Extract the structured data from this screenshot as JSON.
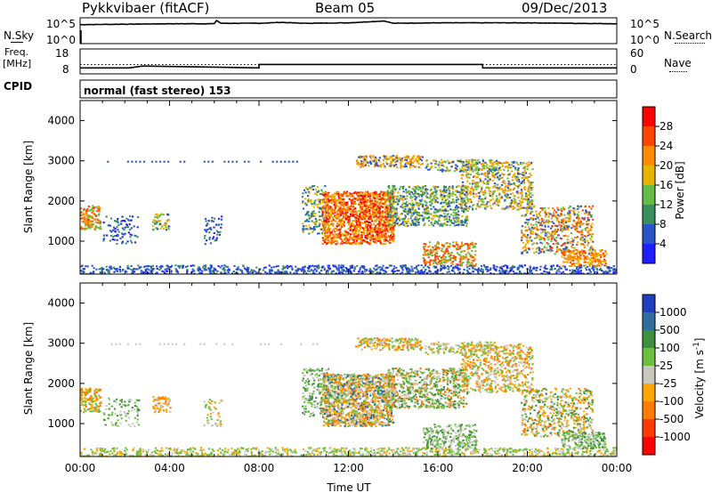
{
  "header": {
    "station": "Pykkvibaer (fitACF)",
    "beam": "Beam 05",
    "date": "09/Dec/2013"
  },
  "strip_nsky": {
    "left_label": "N.Sky",
    "left_ticks": [
      "10^5",
      "10^0"
    ],
    "right_label": "N.Search",
    "right_ticks": [
      "10^5",
      "10^0"
    ]
  },
  "strip_freq": {
    "left_label_1": "Freq.",
    "left_label_2": "[MHz]",
    "left_ticks": [
      "18",
      "8"
    ],
    "right_label": "Nave",
    "right_ticks": [
      "60",
      "0"
    ],
    "cpid_label": "CPID",
    "cpid_text": "normal (fast stereo) 153"
  },
  "colors": {
    "power_scale": [
      "#1e1eff",
      "#2a55c8",
      "#3a8f5a",
      "#66bb44",
      "#e8b400",
      "#ff8c00",
      "#ff4400",
      "#ff0000"
    ],
    "velocity_scale": [
      "#1f3fbf",
      "#2e6e9e",
      "#3e8f3e",
      "#6fbf3f",
      "#c8c8c0",
      "#ffa500",
      "#ff7a00",
      "#ff3a00",
      "#ff0000"
    ]
  },
  "chart_data": [
    {
      "type": "line",
      "name": "N.Sky / N.Search",
      "x": [
        0,
        2,
        4,
        6,
        6.1,
        6.3,
        8,
        9,
        10,
        12,
        13.6,
        14,
        16,
        18,
        20,
        22,
        24
      ],
      "y_log": [
        3.9,
        4.0,
        4.1,
        4.1,
        4.8,
        4.2,
        4.2,
        4.4,
        4.2,
        4.3,
        4.7,
        4.2,
        4.3,
        4.3,
        4.3,
        4.2,
        4.1
      ],
      "ylim": [
        "10^0",
        "10^5"
      ],
      "yticks": [
        "10^5",
        "10^0"
      ]
    },
    {
      "type": "line",
      "name": "Freq. / Nave",
      "x": [
        0,
        2.2,
        2.8,
        8.0,
        8.0,
        18.0,
        18.0,
        24
      ],
      "freq_mhz": [
        10.2,
        10.2,
        11.0,
        10.2,
        11.7,
        11.7,
        10.2,
        10.2
      ],
      "nave_dotted": 22,
      "ylim_freq": [
        8,
        18
      ],
      "ylim_nave": [
        0,
        60
      ]
    },
    {
      "type": "heatmap",
      "name": "Power",
      "xlabel": "",
      "ylabel": "Slant Range [km]",
      "xlim": [
        0,
        24
      ],
      "ylim": [
        180,
        4500
      ],
      "yticks": [
        1000,
        2000,
        3000,
        4000
      ],
      "colorbar_label": "Power [dB]",
      "colorbar_ticks": [
        4,
        8,
        12,
        16,
        20,
        24,
        28
      ],
      "clim": [
        0,
        32
      ]
    },
    {
      "type": "heatmap",
      "name": "Velocity",
      "xlabel": "Time UT",
      "ylabel": "Slant Range [km]",
      "xlim": [
        0,
        24
      ],
      "ylim": [
        180,
        4500
      ],
      "yticks": [
        1000,
        2000,
        3000,
        4000
      ],
      "xticks": [
        "00:00",
        "04:00",
        "08:00",
        "12:00",
        "16:00",
        "20:00",
        "00:00"
      ],
      "colorbar_label": "Velocity [m s^-1]",
      "colorbar_ticks": [
        "1000",
        "500",
        "100",
        "25",
        "-25",
        "-100",
        "-500",
        "-1000"
      ]
    }
  ]
}
